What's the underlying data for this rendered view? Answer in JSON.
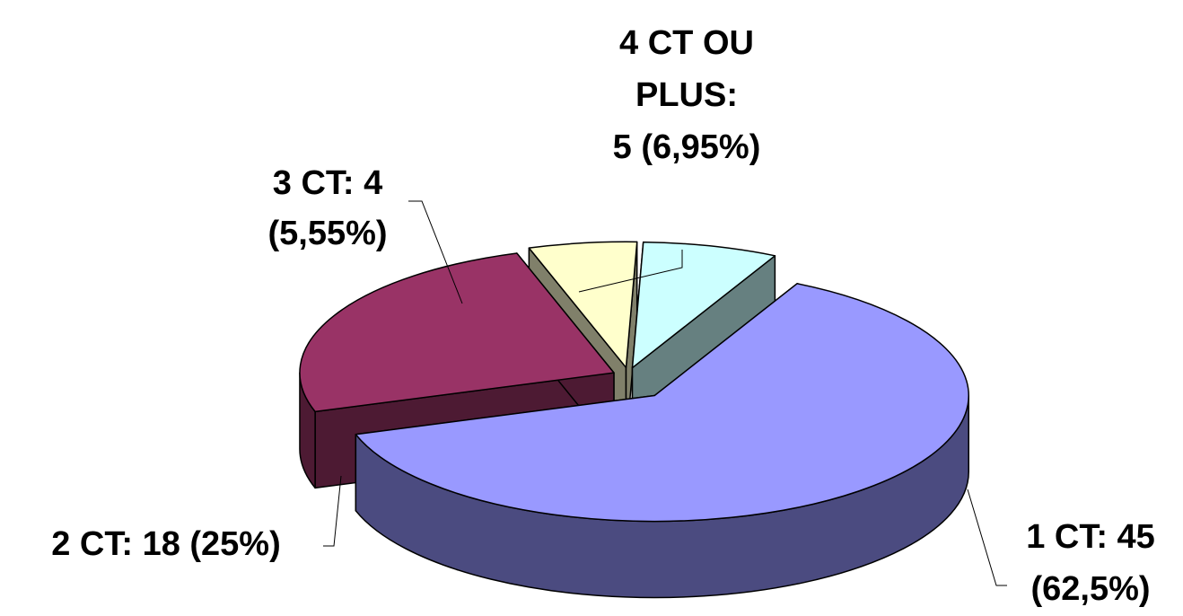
{
  "chart_data": {
    "type": "pie3d",
    "values": [
      45,
      18,
      4,
      5
    ],
    "value_labels": [
      [
        "1 CT: 45",
        "(62,5%)"
      ],
      [
        "2 CT: 18 (25%)"
      ],
      [
        "3 CT: 4",
        "(5,55%)"
      ],
      [
        "4 CT OU",
        "PLUS:",
        "5 (6,95%)"
      ]
    ],
    "colors": [
      "#9999ff",
      "#993366",
      "#ffffcc",
      "#ccffff"
    ],
    "side_colors": [
      "#4b4b80",
      "#4d1a33",
      "#80806a",
      "#668080"
    ]
  }
}
